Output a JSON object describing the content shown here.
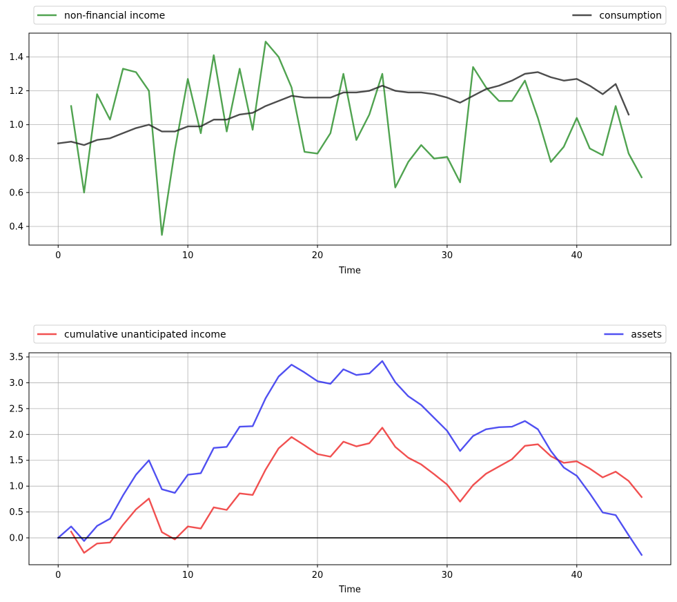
{
  "chart_data": [
    {
      "type": "line",
      "xlabel": "Time",
      "ylabel": "",
      "xlim": [
        -2.25,
        47.25
      ],
      "ylim": [
        0.29,
        1.54
      ],
      "xticks": [
        0,
        10,
        20,
        30,
        40
      ],
      "yticks": [
        0.4,
        0.6,
        0.8,
        1.0,
        1.2,
        1.4
      ],
      "ytick_labels": [
        "0.4",
        "0.6",
        "0.8",
        "1.0",
        "1.2",
        "1.4"
      ],
      "grid": true,
      "legend": "top, above plot",
      "series": [
        {
          "name": "non-financial income",
          "color": "#2a8f2a",
          "x_start": 1,
          "values": [
            1.11,
            0.6,
            1.18,
            1.03,
            1.33,
            1.31,
            1.2,
            0.35,
            0.85,
            1.27,
            0.95,
            1.41,
            0.96,
            1.33,
            0.97,
            1.49,
            1.4,
            1.22,
            0.84,
            0.83,
            0.95,
            1.3,
            0.91,
            1.06,
            1.3,
            0.63,
            0.78,
            0.88,
            0.8,
            0.81,
            0.66,
            1.34,
            1.22,
            1.14,
            1.14,
            1.26,
            1.04,
            0.78,
            0.87,
            1.04,
            0.86,
            0.82,
            1.11,
            0.83,
            0.69
          ]
        },
        {
          "name": "consumption",
          "color": "#262626",
          "x_start": 0,
          "values": [
            0.89,
            0.9,
            0.88,
            0.91,
            0.92,
            0.95,
            0.98,
            1.0,
            0.96,
            0.96,
            0.99,
            0.99,
            1.03,
            1.03,
            1.06,
            1.07,
            1.11,
            1.14,
            1.17,
            1.16,
            1.16,
            1.16,
            1.19,
            1.19,
            1.2,
            1.23,
            1.2,
            1.19,
            1.19,
            1.18,
            1.16,
            1.13,
            1.17,
            1.21,
            1.23,
            1.26,
            1.3,
            1.31,
            1.28,
            1.26,
            1.27,
            1.23,
            1.18,
            1.24,
            1.06
          ]
        }
      ]
    },
    {
      "type": "line",
      "xlabel": "Time",
      "ylabel": "",
      "xlim": [
        -2.25,
        47.25
      ],
      "ylim": [
        -0.52,
        3.58
      ],
      "xticks": [
        0,
        10,
        20,
        30,
        40
      ],
      "yticks": [
        0.0,
        0.5,
        1.0,
        1.5,
        2.0,
        2.5,
        3.0,
        3.5
      ],
      "ytick_labels": [
        "0.0",
        "0.5",
        "1.0",
        "1.5",
        "2.0",
        "2.5",
        "3.0",
        "3.5"
      ],
      "grid": true,
      "legend": "top, above plot",
      "series": [
        {
          "name": "cumulative unanticipated income",
          "color": "#ee2a2a",
          "x_start": 1,
          "values": [
            0.12,
            -0.29,
            -0.11,
            -0.09,
            0.25,
            0.55,
            0.76,
            0.11,
            -0.03,
            0.22,
            0.18,
            0.59,
            0.54,
            0.86,
            0.83,
            1.32,
            1.73,
            1.95,
            1.79,
            1.62,
            1.57,
            1.86,
            1.77,
            1.83,
            2.13,
            1.76,
            1.55,
            1.42,
            1.23,
            1.03,
            0.7,
            1.02,
            1.24,
            1.38,
            1.52,
            1.78,
            1.81,
            1.58,
            1.45,
            1.48,
            1.34,
            1.17,
            1.28,
            1.1,
            0.79
          ]
        },
        {
          "name": "assets",
          "color": "#2a2aee",
          "x_start": 0,
          "values": [
            0.0,
            0.22,
            -0.06,
            0.23,
            0.37,
            0.82,
            1.22,
            1.5,
            0.94,
            0.87,
            1.22,
            1.25,
            1.74,
            1.76,
            2.15,
            2.16,
            2.7,
            3.12,
            3.35,
            3.2,
            3.03,
            2.98,
            3.26,
            3.15,
            3.18,
            3.42,
            3.01,
            2.74,
            2.57,
            2.32,
            2.07,
            1.68,
            1.97,
            2.1,
            2.14,
            2.15,
            2.26,
            2.1,
            1.68,
            1.36,
            1.2,
            0.86,
            0.49,
            0.44,
            0.05,
            -0.33
          ]
        },
        {
          "name": "",
          "color": "#000000",
          "x_start": 0,
          "values": [
            0,
            0,
            0,
            0,
            0,
            0,
            0,
            0,
            0,
            0,
            0,
            0,
            0,
            0,
            0,
            0,
            0,
            0,
            0,
            0,
            0,
            0,
            0,
            0,
            0,
            0,
            0,
            0,
            0,
            0,
            0,
            0,
            0,
            0,
            0,
            0,
            0,
            0,
            0,
            0,
            0,
            0,
            0,
            0,
            0
          ]
        }
      ]
    }
  ]
}
